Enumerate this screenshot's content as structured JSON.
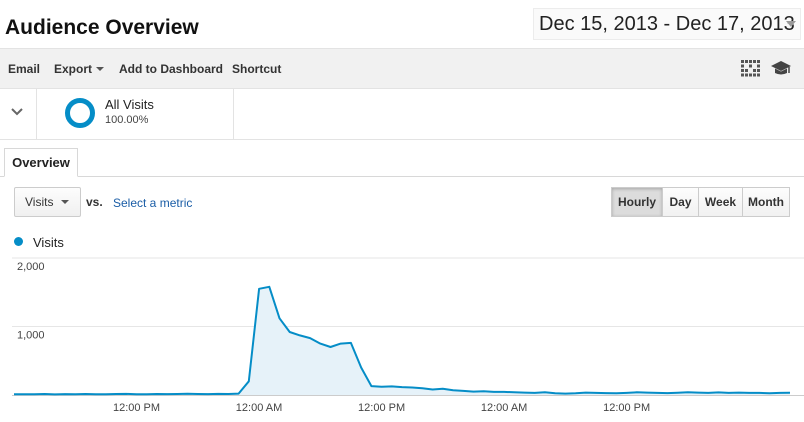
{
  "header": {
    "title": "Audience Overview",
    "date_range": "Dec 15, 2013 - Dec 17, 2013"
  },
  "toolbar": {
    "email": "Email",
    "export": "Export",
    "add_to_dashboard": "Add to Dashboard",
    "shortcut": "Shortcut",
    "icons": [
      "grid-icon",
      "graduation-cap-icon"
    ]
  },
  "segment": {
    "name": "All Visits",
    "percent": "100.00%",
    "accent": "#058dc7"
  },
  "tabs": {
    "overview": "Overview"
  },
  "controls": {
    "metric": "Visits",
    "vs": "vs.",
    "select_metric": "Select a metric",
    "periods": [
      "Hourly",
      "Day",
      "Week",
      "Month"
    ],
    "active_period": "Hourly"
  },
  "chart_data": {
    "type": "area",
    "series": [
      {
        "name": "Visits",
        "color": "#058dc7",
        "values": [
          10,
          12,
          10,
          14,
          9,
          13,
          11,
          15,
          12,
          10,
          14,
          16,
          12,
          11,
          15,
          13,
          14,
          18,
          15,
          13,
          16,
          14,
          20,
          200,
          1550,
          1580,
          1120,
          920,
          870,
          830,
          750,
          700,
          750,
          760,
          400,
          130,
          120,
          125,
          115,
          110,
          100,
          80,
          90,
          70,
          60,
          50,
          55,
          45,
          45,
          40,
          35,
          30,
          40,
          25,
          20,
          25,
          35,
          30,
          28,
          25,
          30,
          40,
          35,
          30,
          28,
          32,
          40,
          35,
          30,
          38,
          30,
          35,
          30,
          30,
          25,
          30,
          32
        ]
      }
    ],
    "x_tick_labels": [
      "12:00 PM",
      "12:00 AM",
      "12:00 PM",
      "12:00 AM",
      "12:00 PM"
    ],
    "x_tick_hour_index": [
      12,
      24,
      36,
      48,
      60
    ],
    "y_tick_labels": [
      "2,000",
      "1,000"
    ],
    "ylim": [
      0,
      2000
    ],
    "grid": true
  }
}
